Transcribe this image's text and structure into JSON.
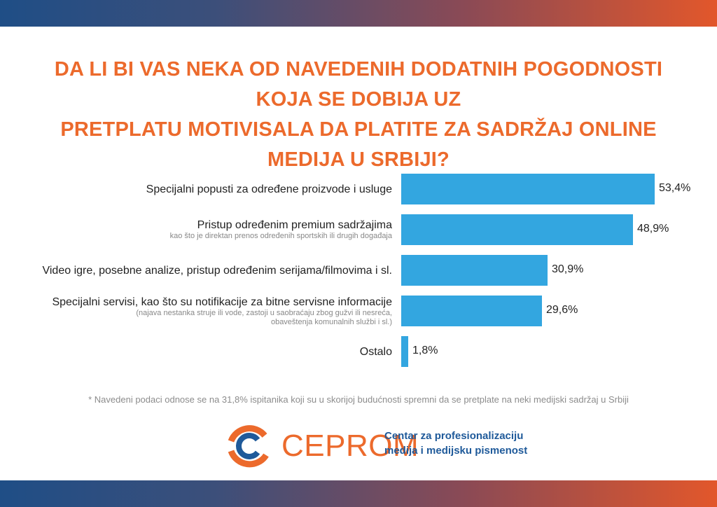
{
  "title": {
    "line1": "DA LI BI VAS NEKA OD NAVEDENIH DODATNIH POGODNOSTI KOJA SE DOBIJA UZ",
    "line2": "PRETPLATU MOTIVISALA DA PLATITE ZA SADRŽAJ ONLINE MEDIJA U SRBIJI?"
  },
  "chart_data": {
    "type": "bar",
    "orientation": "horizontal",
    "categories": [
      "Specijalni popusti za određene proizvode i usluge",
      "Pristup određenim premium sadržajima",
      "Video igre, posebne analize, pristup određenim serijama/filmovima i sl.",
      "Specijalni servisi, kao što su notifikacije za bitne servisne informacije",
      "Ostalo"
    ],
    "sublabels": [
      "",
      "kao što je direktan prenos određenih sportskih ili drugih događaja",
      "",
      "(najava nestanka struje ili vode, zastoji u saobraćaju zbog gužvi ili nesreća,|obaveštenja komunalnih službi i sl.)",
      ""
    ],
    "values": [
      53.4,
      48.9,
      30.9,
      29.6,
      1.8
    ],
    "value_labels": [
      "53,4%",
      "48,9%",
      "30,9%",
      "29,6%",
      "1,8%"
    ],
    "xlim": [
      0,
      53.4
    ],
    "bar_color": "#33a6e0",
    "grid": false
  },
  "footnote": "* Navedeni podaci odnose se na 31,8% ispitanika koji su u skorijoj budućnosti spremni da se pretplate na neki medijski sadržaj u Srbiji",
  "logo": {
    "name": "CEPROM",
    "tagline_line1": "Centar za profesionalizaciju",
    "tagline_line2": "medija i medijsku pismenost"
  },
  "colors": {
    "accent_orange": "#ec6a2c",
    "accent_blue": "#1f5a9a",
    "bar_blue": "#33a6e0"
  }
}
